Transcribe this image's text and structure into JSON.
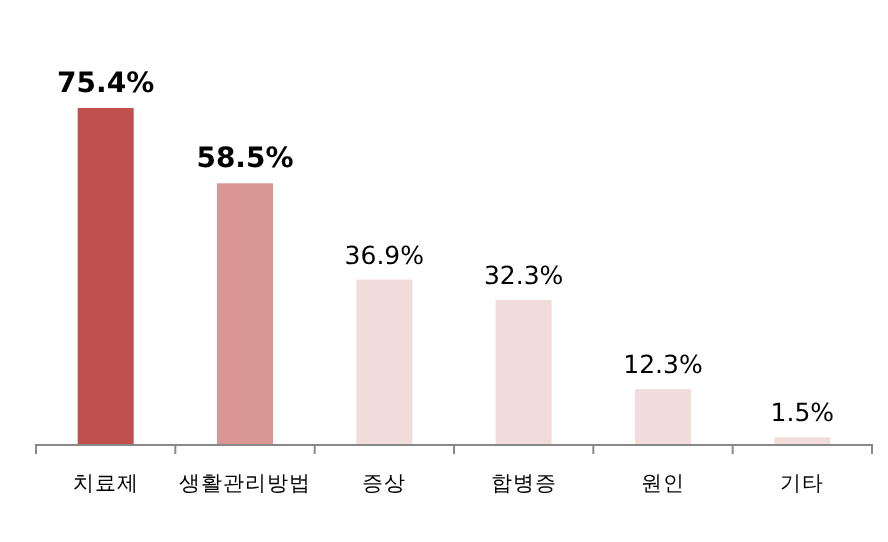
{
  "chart_data": {
    "type": "bar",
    "categories": [
      "치료제",
      "생활관리방법",
      "증상",
      "합병증",
      "원인",
      "기타"
    ],
    "values": [
      75.4,
      58.5,
      36.9,
      32.3,
      12.3,
      1.5
    ],
    "colors": [
      "#c0504d",
      "#d99694",
      "#f2dcdb",
      "#f2dcdb",
      "#f2dcdb",
      "#f2dcdb"
    ],
    "value_labels": [
      "**75.4%**",
      "**58.5%**",
      "36.9%",
      "32.3%",
      "12.3%",
      "1.5%"
    ]
  }
}
